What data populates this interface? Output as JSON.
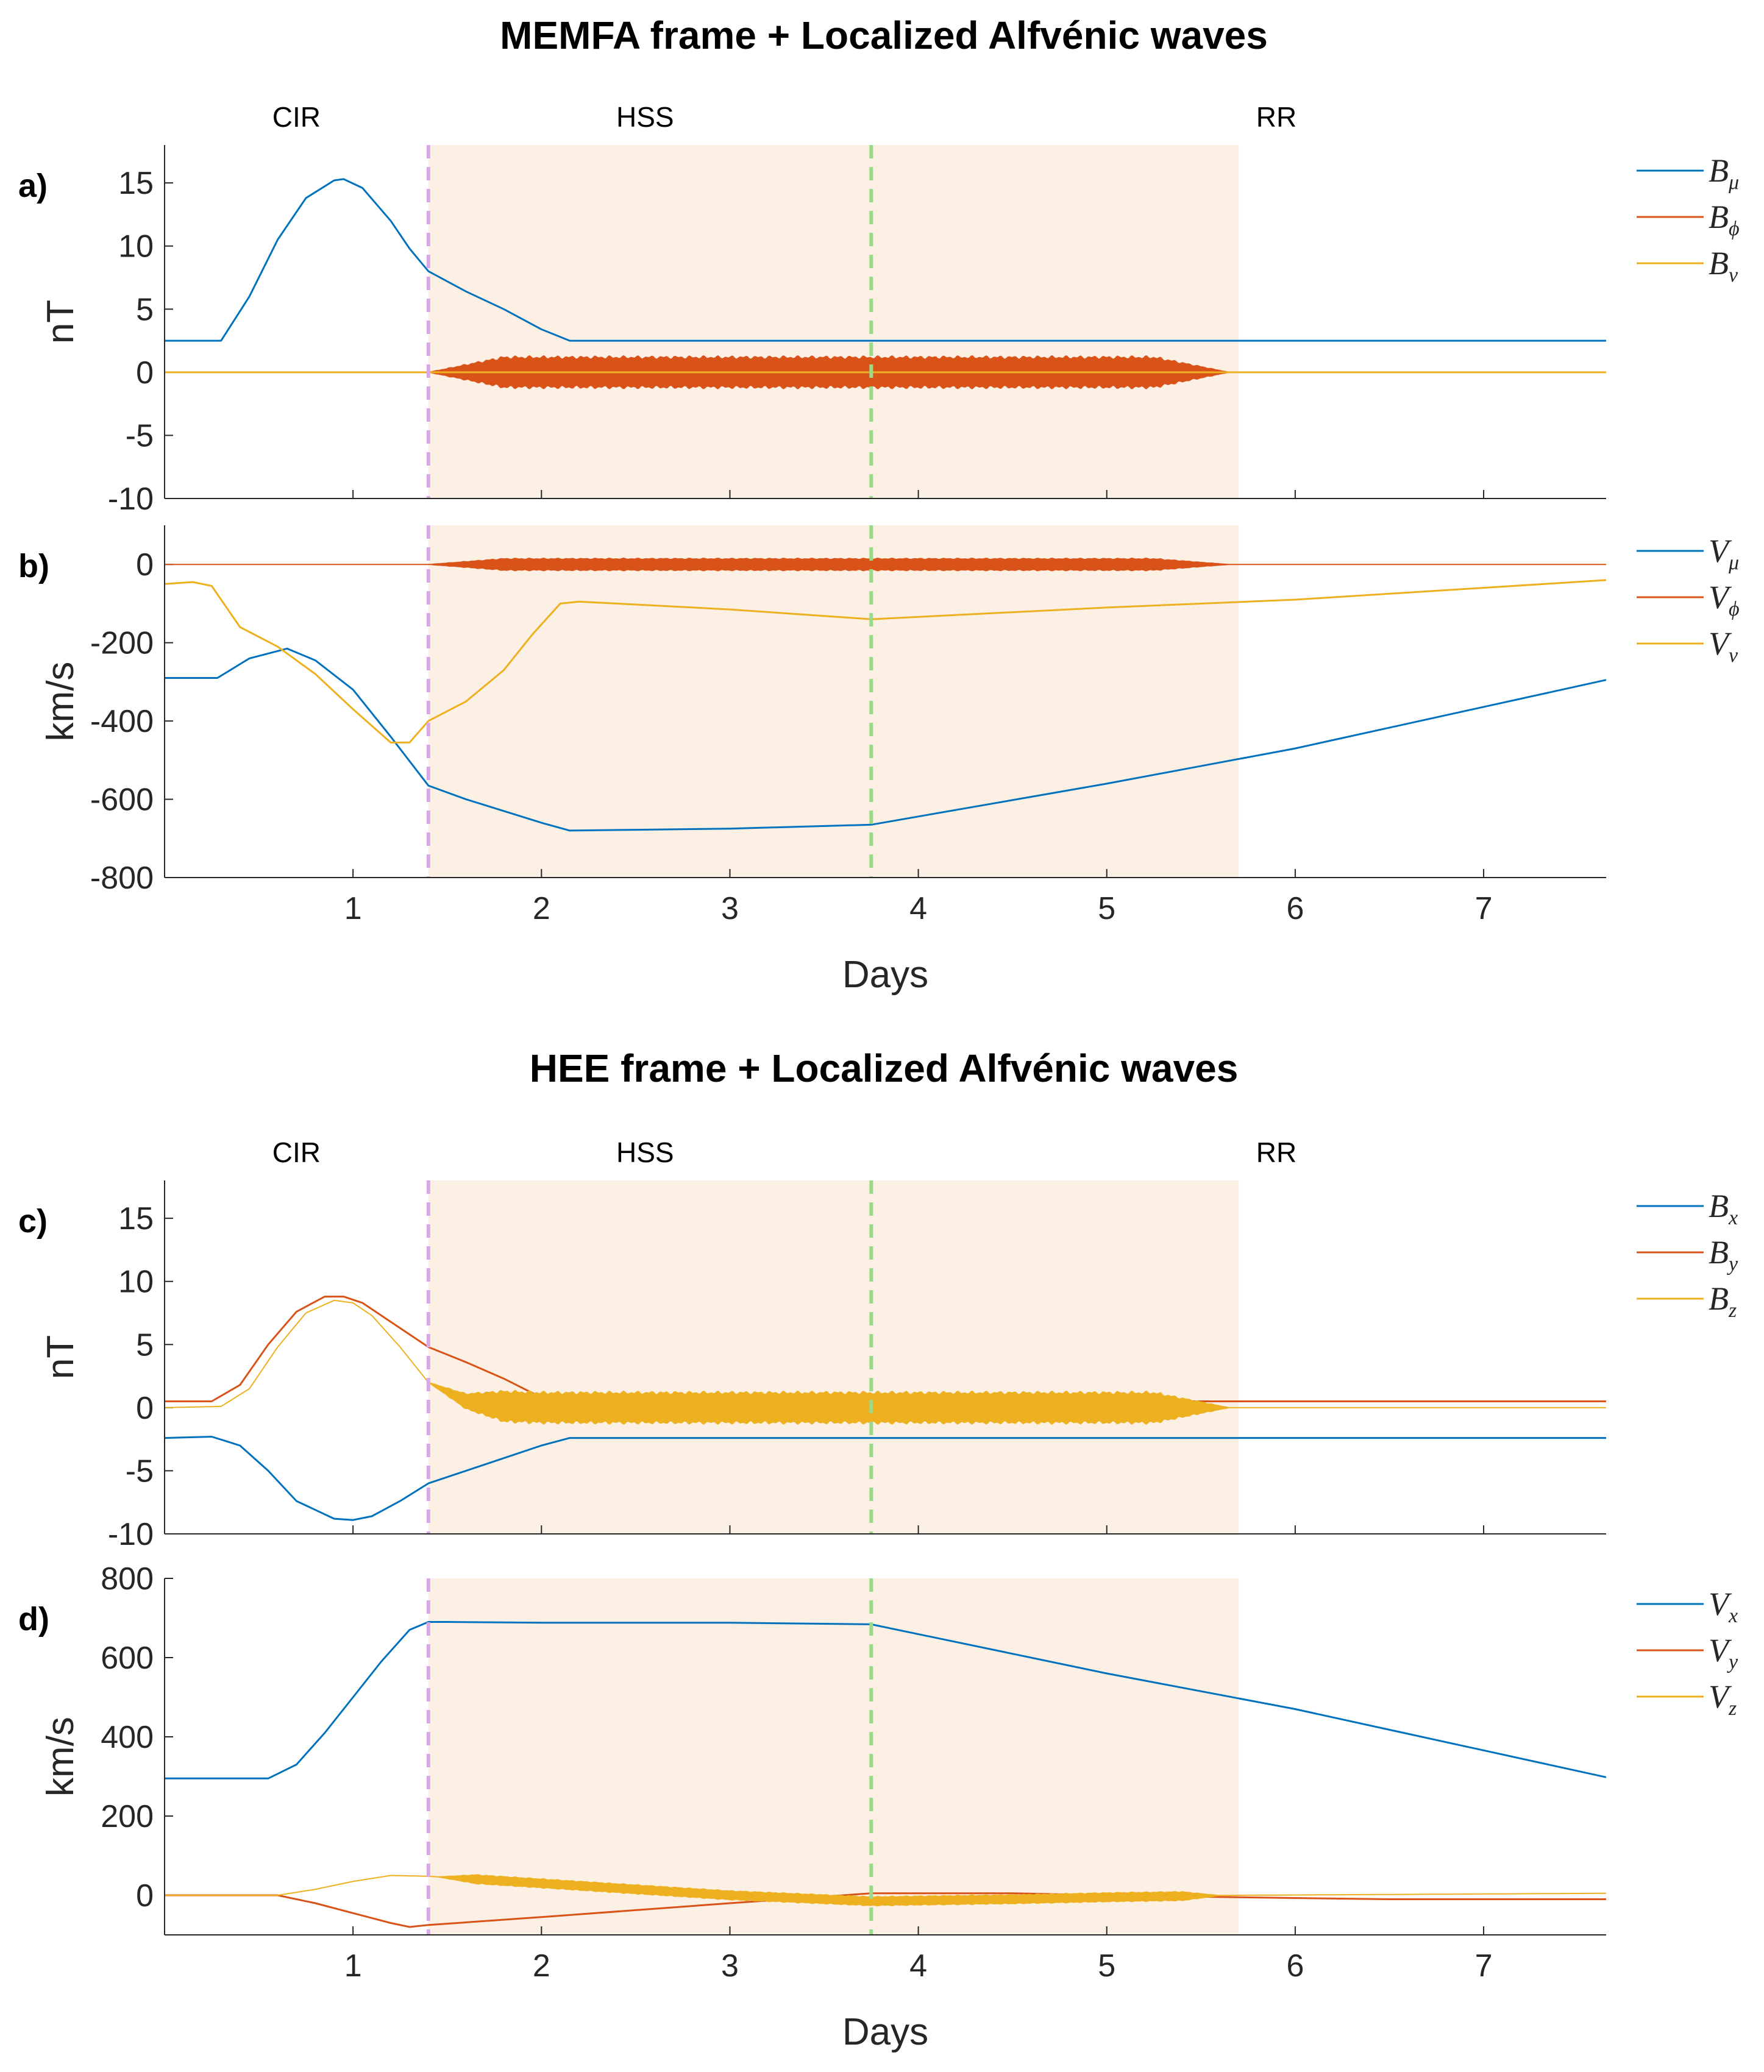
{
  "colors": {
    "blue": "#0072BD",
    "orange": "#D95319",
    "yellow": "#EDB120",
    "shade": "#FCEFE3",
    "purple_line": "#D9A8E8",
    "green_line": "#9ADB8A"
  },
  "chart_data": [
    {
      "type": "line",
      "panel_label": "a)",
      "title": "MEMFA frame + Localized Alfvénic waves",
      "ylabel": "nT",
      "xlabel": "",
      "ylim": [
        -10,
        18
      ],
      "yticks": [
        15,
        10,
        5,
        0,
        -5,
        -10
      ],
      "xlim": [
        0,
        7.65
      ],
      "xticks": [
        1,
        2,
        3,
        4,
        5,
        6,
        7
      ],
      "show_xticklabels": false,
      "regions": [
        {
          "label": "CIR",
          "x": 0.7
        },
        {
          "label": "HSS",
          "x": 2.55
        },
        {
          "label": "RR",
          "x": 5.9
        }
      ],
      "shaded_span": [
        1.4,
        5.7
      ],
      "vlines": [
        {
          "x": 1.4,
          "color": "purple"
        },
        {
          "x": 3.75,
          "color": "green"
        }
      ],
      "legend": [
        {
          "base": "B",
          "sub": "μ",
          "color": "blue"
        },
        {
          "base": "B",
          "sub": "ϕ",
          "color": "orange"
        },
        {
          "base": "B",
          "sub": "ν",
          "color": "yellow"
        }
      ],
      "series": [
        {
          "name": "B_mu",
          "color": "blue",
          "x": [
            0,
            0.3,
            0.45,
            0.6,
            0.75,
            0.9,
            0.95,
            1.05,
            1.2,
            1.3,
            1.4,
            1.6,
            1.8,
            2.0,
            2.15,
            7.65
          ],
          "y": [
            2.5,
            2.5,
            6,
            10.5,
            13.8,
            15.2,
            15.3,
            14.6,
            12.0,
            9.8,
            8.0,
            6.4,
            5.0,
            3.4,
            2.5,
            2.5
          ]
        },
        {
          "name": "B_phi",
          "color": "orange",
          "x": [
            0,
            7.65
          ],
          "y": [
            0,
            0
          ],
          "oscillation": {
            "start": 1.4,
            "end": 5.65,
            "amplitude": 1.3,
            "ramp": 0.4
          }
        },
        {
          "name": "B_nu",
          "color": "yellow",
          "x": [
            0,
            1.42,
            1.42,
            7.65
          ],
          "y": [
            0,
            0,
            0,
            0
          ]
        }
      ]
    },
    {
      "type": "line",
      "panel_label": "b)",
      "ylabel": "km/s",
      "xlabel": "Days",
      "ylim": [
        -800,
        100
      ],
      "yticks": [
        0,
        -200,
        -400,
        -600,
        -800
      ],
      "xlim": [
        0,
        7.65
      ],
      "xticks": [
        1,
        2,
        3,
        4,
        5,
        6,
        7
      ],
      "show_xticklabels": true,
      "shaded_span": [
        1.4,
        5.7
      ],
      "vlines": [
        {
          "x": 1.4,
          "color": "purple"
        },
        {
          "x": 3.75,
          "color": "green"
        }
      ],
      "legend": [
        {
          "base": "V",
          "sub": "μ",
          "color": "blue"
        },
        {
          "base": "V",
          "sub": "ϕ",
          "color": "orange"
        },
        {
          "base": "V",
          "sub": "ν",
          "color": "yellow"
        }
      ],
      "series": [
        {
          "name": "V_mu",
          "color": "blue",
          "x": [
            0,
            0.28,
            0.45,
            0.65,
            0.8,
            1.0,
            1.2,
            1.4,
            1.6,
            1.8,
            2.0,
            2.15,
            2.5,
            3.0,
            3.75,
            5.0,
            6.0,
            7.65
          ],
          "y": [
            -290,
            -290,
            -240,
            -215,
            -245,
            -320,
            -440,
            -565,
            -600,
            -630,
            -660,
            -680,
            -678,
            -675,
            -665,
            -560,
            -470,
            -295
          ]
        },
        {
          "name": "V_phi",
          "color": "orange",
          "x": [
            0,
            7.65
          ],
          "y": [
            0,
            0
          ],
          "oscillation": {
            "start": 1.4,
            "end": 5.65,
            "amplitude": 16,
            "ramp": 0.4
          }
        },
        {
          "name": "V_nu",
          "color": "yellow",
          "x": [
            0,
            0.15,
            0.25,
            0.4,
            0.6,
            0.8,
            1.0,
            1.2,
            1.3,
            1.4,
            1.6,
            1.8,
            1.95,
            2.1,
            2.2,
            3.0,
            3.75,
            5.0,
            6.0,
            7.65
          ],
          "y": [
            -50,
            -45,
            -55,
            -160,
            -210,
            -280,
            -370,
            -455,
            -455,
            -400,
            -350,
            -270,
            -180,
            -100,
            -95,
            -115,
            -140,
            -110,
            -90,
            -40
          ]
        }
      ]
    },
    {
      "type": "line",
      "panel_label": "c)",
      "title": "HEE frame + Localized Alfvénic waves",
      "ylabel": "nT",
      "xlabel": "",
      "ylim": [
        -10,
        18
      ],
      "yticks": [
        15,
        10,
        5,
        0,
        -5,
        -10
      ],
      "xlim": [
        0,
        7.65
      ],
      "xticks": [
        1,
        2,
        3,
        4,
        5,
        6,
        7
      ],
      "show_xticklabels": false,
      "regions": [
        {
          "label": "CIR",
          "x": 0.7
        },
        {
          "label": "HSS",
          "x": 2.55
        },
        {
          "label": "RR",
          "x": 5.9
        }
      ],
      "shaded_span": [
        1.4,
        5.7
      ],
      "vlines": [
        {
          "x": 1.4,
          "color": "purple"
        },
        {
          "x": 3.75,
          "color": "green"
        }
      ],
      "legend": [
        {
          "base": "B",
          "sub": "x",
          "color": "blue"
        },
        {
          "base": "B",
          "sub": "y",
          "color": "orange"
        },
        {
          "base": "B",
          "sub": "z",
          "color": "yellow"
        }
      ],
      "series": [
        {
          "name": "B_x",
          "color": "blue",
          "x": [
            0,
            0.25,
            0.4,
            0.55,
            0.7,
            0.9,
            1.0,
            1.1,
            1.25,
            1.4,
            1.6,
            1.8,
            2.0,
            2.15,
            7.65
          ],
          "y": [
            -2.4,
            -2.3,
            -3.0,
            -5.0,
            -7.4,
            -8.8,
            -8.9,
            -8.6,
            -7.4,
            -6.0,
            -5.0,
            -4.0,
            -3.0,
            -2.4,
            -2.4
          ]
        },
        {
          "name": "B_y",
          "color": "orange",
          "x": [
            0,
            0.25,
            0.4,
            0.55,
            0.7,
            0.85,
            0.95,
            1.05,
            1.2,
            1.4,
            1.6,
            1.8,
            2.0,
            2.05,
            7.65
          ],
          "y": [
            0.5,
            0.5,
            1.8,
            5.0,
            7.6,
            8.8,
            8.8,
            8.3,
            6.8,
            4.8,
            3.6,
            2.3,
            0.8,
            0.5,
            0.5
          ]
        },
        {
          "name": "B_z",
          "color": "yellow",
          "x": [
            0,
            0.3,
            0.45,
            0.6,
            0.75,
            0.9,
            1.0,
            1.1,
            1.25,
            1.4,
            1.6,
            1.8,
            2.0,
            5.7,
            7.65
          ],
          "y": [
            0,
            0.1,
            1.5,
            4.8,
            7.5,
            8.5,
            8.3,
            7.3,
            4.8,
            2.0,
            0.5,
            0.1,
            0,
            0,
            0
          ],
          "oscillation": {
            "start": 1.4,
            "end": 5.65,
            "amplitude": 1.3,
            "ramp": 0.4
          }
        }
      ]
    },
    {
      "type": "line",
      "panel_label": "d)",
      "ylabel": "km/s",
      "xlabel": "Days",
      "ylim": [
        -100,
        800
      ],
      "yticks": [
        800,
        600,
        400,
        200,
        0
      ],
      "xlim": [
        0,
        7.65
      ],
      "xticks": [
        1,
        2,
        3,
        4,
        5,
        6,
        7
      ],
      "show_xticklabels": true,
      "shaded_span": [
        1.4,
        5.7
      ],
      "vlines": [
        {
          "x": 1.4,
          "color": "purple"
        },
        {
          "x": 3.75,
          "color": "green"
        }
      ],
      "legend": [
        {
          "base": "V",
          "sub": "x",
          "color": "blue"
        },
        {
          "base": "V",
          "sub": "y",
          "color": "orange"
        },
        {
          "base": "V",
          "sub": "z",
          "color": "yellow"
        }
      ],
      "series": [
        {
          "name": "V_x",
          "color": "blue",
          "x": [
            0,
            0.3,
            0.55,
            0.7,
            0.85,
            1.0,
            1.15,
            1.3,
            1.4,
            1.5,
            2.0,
            3.0,
            3.75,
            5.0,
            6.0,
            7.65
          ],
          "y": [
            295,
            295,
            295,
            330,
            410,
            500,
            590,
            670,
            690,
            690,
            688,
            688,
            684,
            560,
            470,
            298
          ]
        },
        {
          "name": "V_y",
          "color": "orange",
          "x": [
            0,
            0.6,
            0.8,
            1.0,
            1.2,
            1.3,
            1.4,
            2.0,
            3.0,
            3.75,
            4.5,
            5.0,
            5.7,
            6.5,
            7.65
          ],
          "y": [
            0,
            0,
            -20,
            -45,
            -70,
            -80,
            -75,
            -55,
            -20,
            5,
            5,
            0,
            -5,
            -10,
            -10
          ]
        },
        {
          "name": "V_z",
          "color": "yellow",
          "x": [
            0,
            0.6,
            0.8,
            1.0,
            1.2,
            1.4,
            2.0,
            3.0,
            3.75,
            4.5,
            5.0,
            5.7,
            6.5,
            7.65
          ],
          "y": [
            0,
            0,
            15,
            35,
            50,
            48,
            30,
            0,
            -15,
            -10,
            -5,
            0,
            2,
            5
          ],
          "oscillation": {
            "start": 1.45,
            "end": 5.6,
            "amplitude": 12,
            "ramp": 0.2
          }
        }
      ]
    }
  ]
}
